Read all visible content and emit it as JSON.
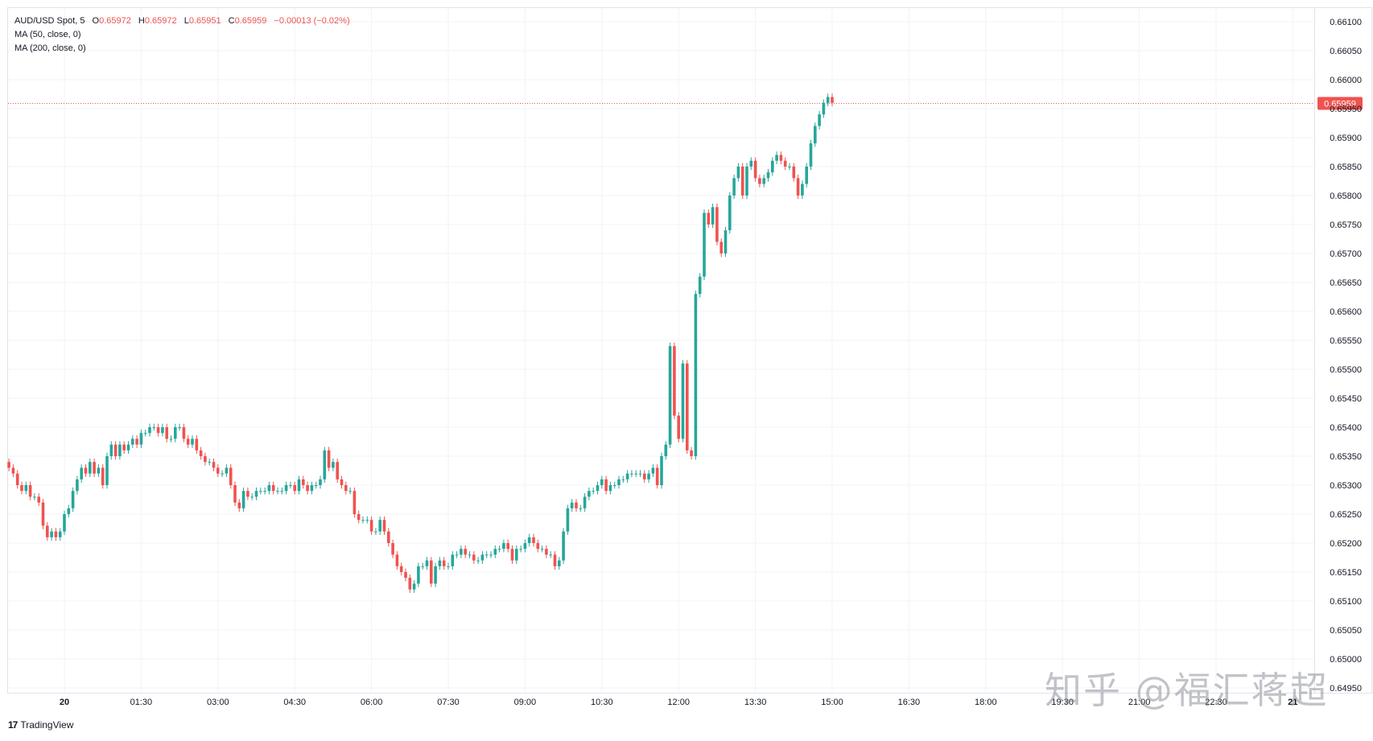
{
  "header": {
    "symbol": "AUD/USD Spot",
    "interval": "5",
    "open_label": "O",
    "open": "0.65972",
    "high_label": "H",
    "high": "0.65972",
    "low_label": "L",
    "low": "0.65951",
    "close_label": "C",
    "close": "0.65959",
    "change": "−0.00013 (−0.02%)",
    "indicators": [
      "MA (50, close, 0)",
      "MA (200, close, 0)"
    ]
  },
  "colors": {
    "up": "#26a69a",
    "down": "#ef5350",
    "grid": "#f0f3fa",
    "axis_text": "#131722",
    "price_line": "#ef5350"
  },
  "brand": {
    "logo": "17",
    "name": "TradingView"
  },
  "watermark": "知乎 @福汇蒋超",
  "chart_data": {
    "type": "candlestick",
    "symbol": "AUD/USD Spot",
    "interval": "5",
    "ylim": [
      0.6493,
      0.6613
    ],
    "y_ticks": [
      "0.66100",
      "0.66050",
      "0.66000",
      "0.65950",
      "0.65900",
      "0.65850",
      "0.65800",
      "0.65750",
      "0.65700",
      "0.65650",
      "0.65600",
      "0.65550",
      "0.65500",
      "0.65450",
      "0.65400",
      "0.65350",
      "0.65300",
      "0.65250",
      "0.65200",
      "0.65150",
      "0.65100",
      "0.65050",
      "0.65000",
      "0.64950"
    ],
    "x_ticks": [
      "20",
      "01:30",
      "03:00",
      "04:30",
      "06:00",
      "07:30",
      "09:00",
      "10:30",
      "12:00",
      "13:30",
      "15:00",
      "16:30",
      "18:00",
      "19:30",
      "21:00",
      "22:30",
      "21"
    ],
    "x_tick_bar_index": [
      0,
      18,
      36,
      54,
      72,
      90,
      108,
      126,
      144,
      162,
      180,
      198,
      216,
      234,
      252,
      270,
      288
    ],
    "first_bar_offset": -13,
    "last_price": "0.65959",
    "last_price_value": 0.65959,
    "closes": [
      0.6533,
      0.6532,
      0.653,
      0.6529,
      0.653,
      0.6528,
      0.6528,
      0.6527,
      0.6523,
      0.6521,
      0.6522,
      0.6521,
      0.6522,
      0.6525,
      0.6526,
      0.6529,
      0.6531,
      0.6533,
      0.6532,
      0.6534,
      0.6532,
      0.6533,
      0.653,
      0.6535,
      0.6537,
      0.6535,
      0.6537,
      0.6536,
      0.6537,
      0.6538,
      0.6537,
      0.6539,
      0.6539,
      0.654,
      0.654,
      0.6539,
      0.654,
      0.6538,
      0.6538,
      0.654,
      0.654,
      0.6538,
      0.6537,
      0.6538,
      0.6536,
      0.6535,
      0.6534,
      0.6534,
      0.6533,
      0.6532,
      0.6532,
      0.6533,
      0.653,
      0.6527,
      0.6526,
      0.6529,
      0.6528,
      0.6528,
      0.6529,
      0.6529,
      0.6529,
      0.653,
      0.6529,
      0.6529,
      0.6529,
      0.653,
      0.653,
      0.6529,
      0.6531,
      0.653,
      0.6529,
      0.653,
      0.653,
      0.6531,
      0.6536,
      0.6533,
      0.6534,
      0.6531,
      0.653,
      0.6529,
      0.6529,
      0.6525,
      0.6524,
      0.6524,
      0.6524,
      0.6522,
      0.6522,
      0.6524,
      0.6522,
      0.652,
      0.6518,
      0.6516,
      0.6515,
      0.6514,
      0.6512,
      0.6513,
      0.6516,
      0.6516,
      0.6517,
      0.6513,
      0.6516,
      0.6517,
      0.6516,
      0.6516,
      0.6518,
      0.6518,
      0.6519,
      0.6518,
      0.6518,
      0.6517,
      0.6517,
      0.6518,
      0.6518,
      0.6518,
      0.6519,
      0.6519,
      0.652,
      0.6519,
      0.6517,
      0.6519,
      0.6519,
      0.652,
      0.6521,
      0.652,
      0.6519,
      0.6519,
      0.6518,
      0.6518,
      0.6516,
      0.6517,
      0.6522,
      0.6526,
      0.6527,
      0.6526,
      0.6526,
      0.6528,
      0.6529,
      0.6529,
      0.653,
      0.6531,
      0.6529,
      0.653,
      0.653,
      0.6531,
      0.6531,
      0.6532,
      0.6532,
      0.6532,
      0.6532,
      0.6531,
      0.6532,
      0.6533,
      0.653,
      0.6535,
      0.6537,
      0.6554,
      0.6542,
      0.6538,
      0.6551,
      0.6536,
      0.6535,
      0.6563,
      0.6566,
      0.6577,
      0.6575,
      0.6578,
      0.6572,
      0.657,
      0.6574,
      0.658,
      0.6583,
      0.6585,
      0.658,
      0.6585,
      0.6586,
      0.6583,
      0.6582,
      0.6583,
      0.6584,
      0.6586,
      0.6587,
      0.6586,
      0.6585,
      0.6585,
      0.6583,
      0.658,
      0.6582,
      0.6585,
      0.6589,
      0.6592,
      0.6594,
      0.6596,
      0.6597,
      0.6596
    ]
  }
}
